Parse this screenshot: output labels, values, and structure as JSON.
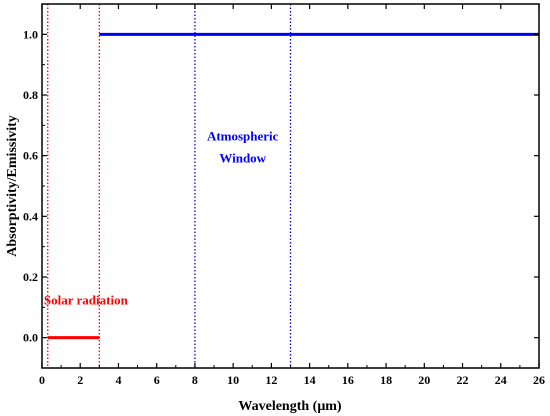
{
  "chart_data": {
    "type": "line",
    "xlabel": "Wavelength (μm)",
    "ylabel": "Absorptivity/Emissivity",
    "xlim": [
      0,
      26
    ],
    "ylim": [
      -0.1,
      1.1
    ],
    "x_ticks": [
      0,
      2,
      4,
      6,
      8,
      10,
      12,
      14,
      16,
      18,
      20,
      22,
      24,
      26
    ],
    "y_ticks": [
      0.0,
      0.2,
      0.4,
      0.6,
      0.8,
      1.0
    ],
    "x_tick_labels": [
      "0",
      "2",
      "4",
      "6",
      "8",
      "10",
      "12",
      "14",
      "16",
      "18",
      "20",
      "22",
      "24",
      "26"
    ],
    "y_tick_labels": [
      "0.0",
      "0.2",
      "0.4",
      "0.6",
      "0.8",
      "1.0"
    ],
    "grid": false,
    "series": [
      {
        "color": "#ff0000",
        "x": [
          0.3,
          3.0
        ],
        "y": [
          0.0,
          0.0
        ]
      },
      {
        "color": "#0000ff",
        "x": [
          3.0,
          26.0
        ],
        "y": [
          1.0,
          1.0
        ]
      }
    ],
    "vlines": [
      {
        "x": 0.3,
        "color": "#ff0000",
        "style": "dotted"
      },
      {
        "x": 3.0,
        "color": "#ff0000",
        "style": "dotted"
      },
      {
        "x": 8.0,
        "color": "#0000ff",
        "style": "dotted"
      },
      {
        "x": 13.0,
        "color": "#0000ff",
        "style": "dotted"
      }
    ],
    "annotations": [
      {
        "lines": [
          "Solar radiation"
        ],
        "x": 0.1,
        "y": 0.11,
        "color": "#ff0000",
        "anchor": "start"
      },
      {
        "lines": [
          "Atmospheric",
          "Window"
        ],
        "x": 10.5,
        "y": 0.65,
        "color": "#0000ff",
        "anchor": "middle"
      }
    ]
  }
}
